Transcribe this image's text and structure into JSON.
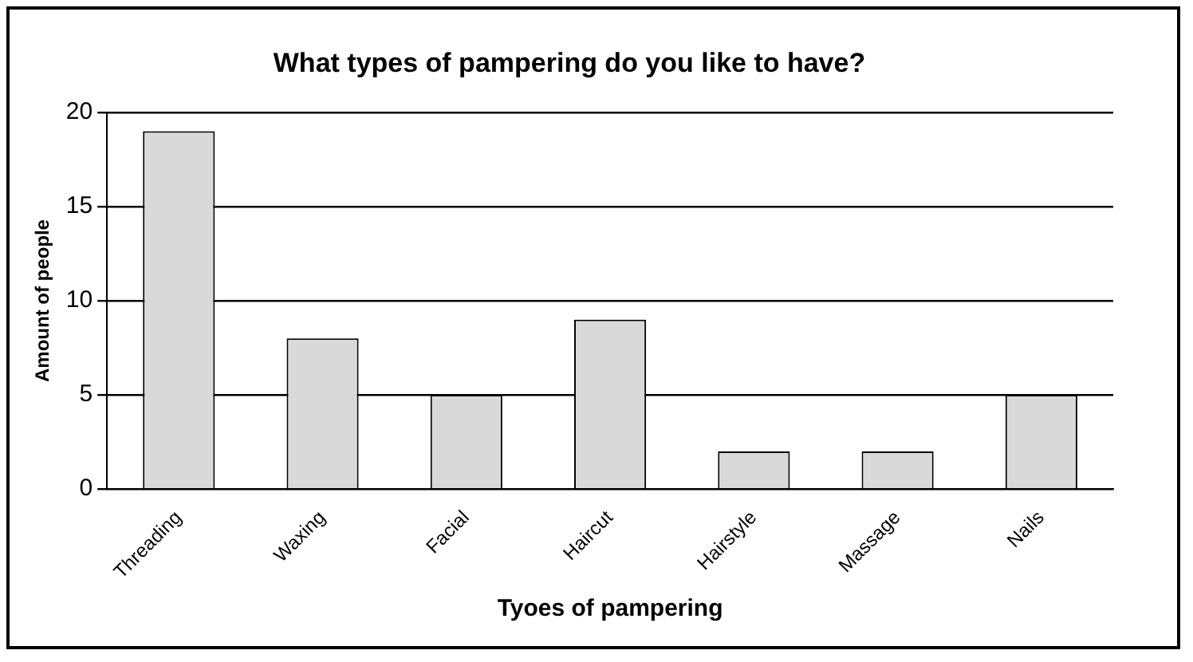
{
  "chart_data": {
    "type": "bar",
    "title": "What types of pampering do you like to have?",
    "xlabel": "Tyoes of pampering",
    "ylabel": "Amount of people",
    "categories": [
      "Threading",
      "Waxing",
      "Facial",
      "Haircut",
      "Hairstyle",
      "Massage",
      "Nails"
    ],
    "values": [
      19,
      8,
      5,
      9,
      2,
      2,
      5
    ],
    "color": "#d9d9d9",
    "ylim": [
      0,
      20
    ],
    "yticks": [
      0,
      5,
      10,
      15,
      20
    ],
    "grid": "y",
    "legend": false
  }
}
